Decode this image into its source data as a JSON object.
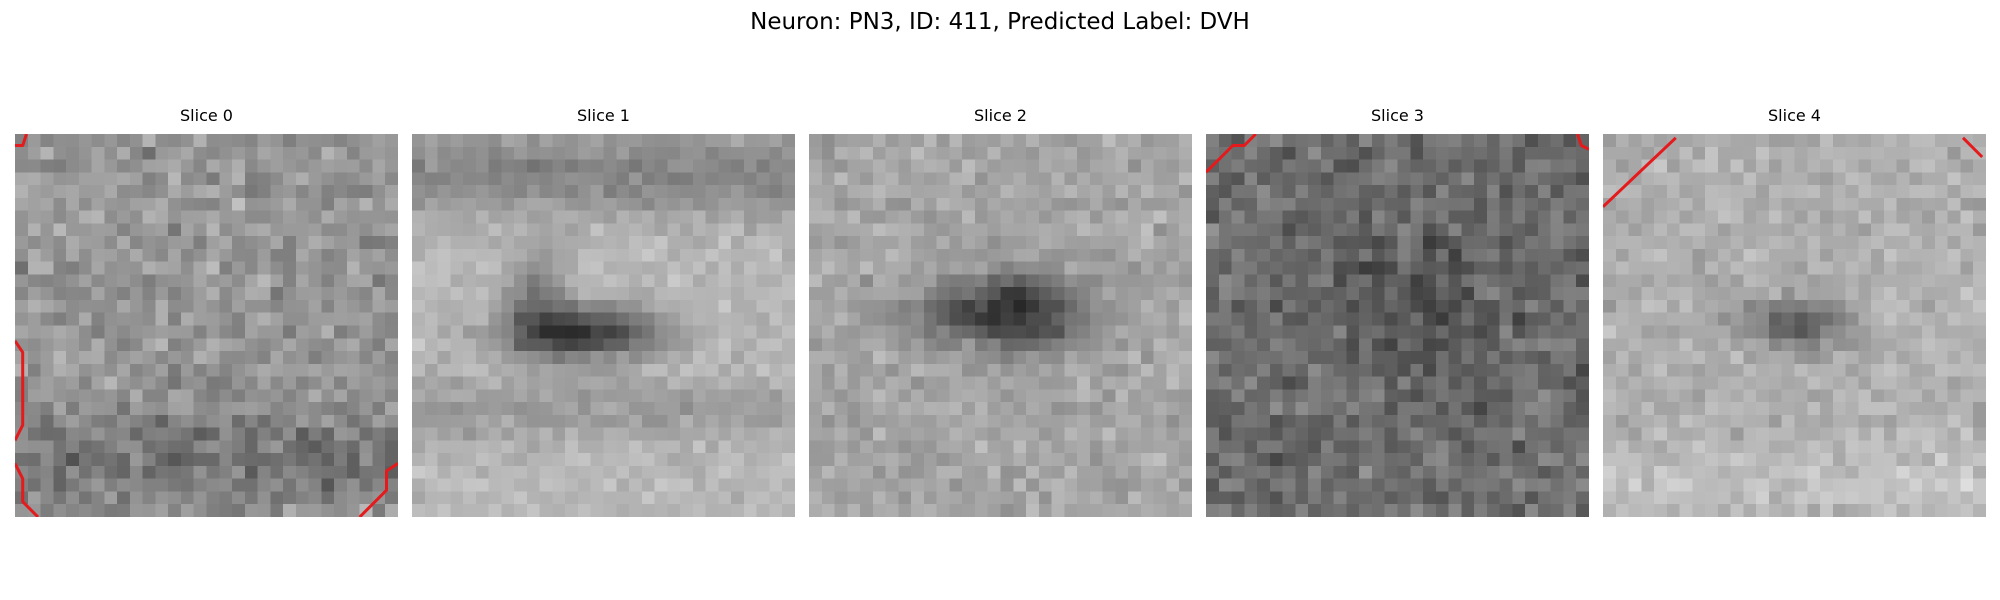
{
  "figure": {
    "suptitle": "Neuron: PN3, ID: 411, Predicted Label: DVH"
  },
  "panels": [
    {
      "title": "Slice 0"
    },
    {
      "title": "Slice 1"
    },
    {
      "title": "Slice 2"
    },
    {
      "title": "Slice 3"
    },
    {
      "title": "Slice 4"
    }
  ],
  "colors": {
    "contour": "#e41a1c",
    "background": "#ffffff"
  }
}
